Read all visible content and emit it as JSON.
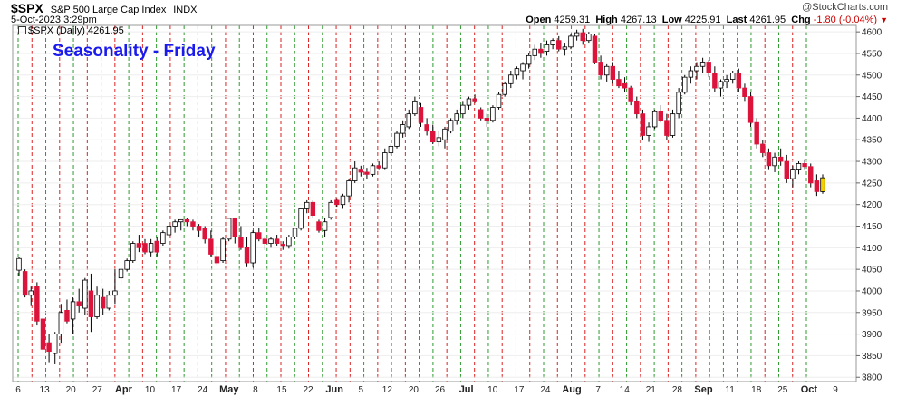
{
  "header": {
    "symbol": "$SPX",
    "description": "S&P 500 Large Cap Index",
    "exchange": "INDX",
    "brand": "@StockCharts.com",
    "datetime": "5-Oct-2023 3:29pm",
    "open_label": "Open",
    "open": "4259.31",
    "high_label": "High",
    "high": "4267.13",
    "low_label": "Low",
    "low": "4225.91",
    "last_label": "Last",
    "last": "4261.95",
    "chg_label": "Chg",
    "chg": "-1.80 (-0.04%)",
    "legend": "$SPX (Daily) 4261.95"
  },
  "annotation": "Seasonality - Friday",
  "colors": {
    "up_candle": "#ffffff",
    "down_candle": "#dc143c",
    "outline": "#000000",
    "green_line": "#2e9a2e",
    "red_line": "#dd2222",
    "annotation": "#1a1aee",
    "last_candle": "#f5d000"
  },
  "chart_data": {
    "type": "candlestick",
    "title": "Seasonality - Friday",
    "ylim": [
      3790,
      4615
    ],
    "yticks": [
      3800,
      3850,
      3900,
      3950,
      4000,
      4050,
      4100,
      4150,
      4200,
      4250,
      4300,
      4350,
      4400,
      4450,
      4500,
      4550,
      4600
    ],
    "xlabels": [
      {
        "label": "6",
        "month": false
      },
      {
        "label": "13",
        "month": false
      },
      {
        "label": "20",
        "month": false
      },
      {
        "label": "27",
        "month": false
      },
      {
        "label": "Apr",
        "month": true
      },
      {
        "label": "10",
        "month": false
      },
      {
        "label": "17",
        "month": false
      },
      {
        "label": "24",
        "month": false
      },
      {
        "label": "May",
        "month": true
      },
      {
        "label": "8",
        "month": false
      },
      {
        "label": "15",
        "month": false
      },
      {
        "label": "22",
        "month": false
      },
      {
        "label": "Jun",
        "month": true
      },
      {
        "label": "5",
        "month": false
      },
      {
        "label": "12",
        "month": false
      },
      {
        "label": "20",
        "month": false
      },
      {
        "label": "26",
        "month": false
      },
      {
        "label": "Jul",
        "month": true
      },
      {
        "label": "10",
        "month": false
      },
      {
        "label": "17",
        "month": false
      },
      {
        "label": "24",
        "month": false
      },
      {
        "label": "Aug",
        "month": true
      },
      {
        "label": "7",
        "month": false
      },
      {
        "label": "14",
        "month": false
      },
      {
        "label": "21",
        "month": false
      },
      {
        "label": "28",
        "month": false
      },
      {
        "label": "Sep",
        "month": true
      },
      {
        "label": "11",
        "month": false
      },
      {
        "label": "18",
        "month": false
      },
      {
        "label": "25",
        "month": false
      },
      {
        "label": "Oct",
        "month": true
      },
      {
        "label": "9",
        "month": false
      }
    ],
    "vertical_lines": [
      {
        "day": "Monday",
        "color": "green",
        "label": "6"
      },
      {
        "day": "Friday",
        "color": "red",
        "label": "10 Mar"
      },
      {
        "day": "Monday",
        "color": "green",
        "label": "13"
      },
      {
        "day": "Friday",
        "color": "red",
        "label": "17 Mar"
      },
      {
        "day": "Monday",
        "color": "green",
        "label": "20"
      },
      {
        "day": "Friday",
        "color": "red",
        "label": "24 Mar"
      },
      {
        "day": "Monday",
        "color": "green",
        "label": "27"
      },
      {
        "day": "Friday",
        "color": "red",
        "label": "31 Mar"
      },
      {
        "day": "Monday",
        "color": "green",
        "label": "3 Apr"
      },
      {
        "day": "Friday",
        "color": "red",
        "label": "7 Apr"
      },
      {
        "day": "Monday",
        "color": "green",
        "label": "10"
      },
      {
        "day": "Friday",
        "color": "red",
        "label": "14 Apr"
      },
      {
        "day": "Monday",
        "color": "green",
        "label": "17"
      },
      {
        "day": "Friday",
        "color": "red",
        "label": "21 Apr"
      },
      {
        "day": "Monday",
        "color": "green",
        "label": "24"
      },
      {
        "day": "Friday",
        "color": "red",
        "label": "28 Apr"
      },
      {
        "day": "Monday",
        "color": "green",
        "label": "1 May"
      },
      {
        "day": "Friday",
        "color": "red",
        "label": "5 May"
      },
      {
        "day": "Monday",
        "color": "green",
        "label": "8"
      },
      {
        "day": "Friday",
        "color": "red",
        "label": "12 May"
      },
      {
        "day": "Monday",
        "color": "green",
        "label": "15"
      },
      {
        "day": "Friday",
        "color": "red",
        "label": "19 May"
      },
      {
        "day": "Monday",
        "color": "green",
        "label": "22"
      },
      {
        "day": "Friday",
        "color": "red",
        "label": "26 May"
      },
      {
        "day": "Friday",
        "color": "red",
        "label": "2 Jun"
      },
      {
        "day": "Monday",
        "color": "green",
        "label": "5"
      },
      {
        "day": "Friday",
        "color": "red",
        "label": "9 Jun"
      },
      {
        "day": "Monday",
        "color": "green",
        "label": "12"
      },
      {
        "day": "Friday",
        "color": "red",
        "label": "16 Jun"
      },
      {
        "day": "Friday",
        "color": "red",
        "label": "23 Jun"
      },
      {
        "day": "Monday",
        "color": "green",
        "label": "26"
      },
      {
        "day": "Friday",
        "color": "red",
        "label": "30 Jun"
      },
      {
        "day": "Monday",
        "color": "green",
        "label": "3 Jul"
      },
      {
        "day": "Friday",
        "color": "red",
        "label": "7 Jul"
      },
      {
        "day": "Monday",
        "color": "green",
        "label": "10"
      },
      {
        "day": "Friday",
        "color": "red",
        "label": "14 Jul"
      },
      {
        "day": "Monday",
        "color": "green",
        "label": "17"
      },
      {
        "day": "Friday",
        "color": "red",
        "label": "21 Jul"
      },
      {
        "day": "Monday",
        "color": "green",
        "label": "24"
      },
      {
        "day": "Friday",
        "color": "red",
        "label": "28 Jul"
      },
      {
        "day": "Monday",
        "color": "green",
        "label": "31 Jul"
      },
      {
        "day": "Friday",
        "color": "red",
        "label": "4 Aug"
      },
      {
        "day": "Monday",
        "color": "green",
        "label": "7"
      },
      {
        "day": "Friday",
        "color": "red",
        "label": "11 Aug"
      },
      {
        "day": "Monday",
        "color": "green",
        "label": "14"
      },
      {
        "day": "Friday",
        "color": "red",
        "label": "18 Aug"
      },
      {
        "day": "Monday",
        "color": "green",
        "label": "21"
      },
      {
        "day": "Friday",
        "color": "red",
        "label": "25 Aug"
      },
      {
        "day": "Monday",
        "color": "green",
        "label": "28"
      },
      {
        "day": "Friday",
        "color": "red",
        "label": "1 Sep"
      },
      {
        "day": "Friday",
        "color": "red",
        "label": "8 Sep"
      },
      {
        "day": "Monday",
        "color": "green",
        "label": "11"
      },
      {
        "day": "Friday",
        "color": "red",
        "label": "15 Sep"
      },
      {
        "day": "Monday",
        "color": "green",
        "label": "18"
      },
      {
        "day": "Friday",
        "color": "red",
        "label": "22 Sep"
      },
      {
        "day": "Monday",
        "color": "green",
        "label": "25"
      },
      {
        "day": "Friday",
        "color": "red",
        "label": "29 Sep"
      },
      {
        "day": "Monday",
        "color": "green",
        "label": "2 Oct"
      }
    ],
    "ohlc": [
      [
        4048,
        4078,
        4035,
        4075
      ],
      [
        4045,
        4050,
        3985,
        3990
      ],
      [
        3990,
        4010,
        3965,
        4000
      ],
      [
        4010,
        4020,
        3920,
        3930
      ],
      [
        3935,
        3945,
        3855,
        3865
      ],
      [
        3880,
        3900,
        3835,
        3860
      ],
      [
        3855,
        3905,
        3830,
        3900
      ],
      [
        3900,
        3970,
        3880,
        3950
      ],
      [
        3955,
        3980,
        3925,
        3930
      ],
      [
        3935,
        3985,
        3900,
        3975
      ],
      [
        3975,
        4005,
        3950,
        3965
      ],
      [
        3960,
        4030,
        3945,
        4025
      ],
      [
        4000,
        4040,
        3905,
        3940
      ],
      [
        3940,
        4010,
        3935,
        3990
      ],
      [
        3985,
        4005,
        3945,
        3960
      ],
      [
        3960,
        4000,
        3955,
        3990
      ],
      [
        3990,
        4050,
        3970,
        4000
      ],
      [
        4030,
        4055,
        4015,
        4050
      ],
      [
        4050,
        4075,
        4045,
        4070
      ],
      [
        4070,
        4115,
        4065,
        4110
      ],
      [
        4110,
        4130,
        4090,
        4100
      ],
      [
        4110,
        4120,
        4085,
        4090
      ],
      [
        4090,
        4120,
        4080,
        4110
      ],
      [
        4115,
        4125,
        4080,
        4090
      ],
      [
        4110,
        4140,
        4105,
        4135
      ],
      [
        4130,
        4155,
        4120,
        4150
      ],
      [
        4150,
        4165,
        4135,
        4160
      ],
      [
        4160,
        4165,
        4140,
        4165
      ],
      [
        4165,
        4170,
        4150,
        4160
      ],
      [
        4160,
        4165,
        4140,
        4150
      ],
      [
        4150,
        4155,
        4125,
        4140
      ],
      [
        4145,
        4150,
        4110,
        4120
      ],
      [
        4120,
        4140,
        4080,
        4085
      ],
      [
        4080,
        4105,
        4060,
        4065
      ],
      [
        4070,
        4125,
        4065,
        4120
      ],
      [
        4120,
        4170,
        4115,
        4168
      ],
      [
        4168,
        4170,
        4110,
        4125
      ],
      [
        4125,
        4150,
        4095,
        4100
      ],
      [
        4100,
        4125,
        4055,
        4065
      ],
      [
        4065,
        4140,
        4055,
        4135
      ],
      [
        4135,
        4145,
        4115,
        4120
      ],
      [
        4120,
        4125,
        4095,
        4110
      ],
      [
        4110,
        4125,
        4100,
        4120
      ],
      [
        4120,
        4130,
        4105,
        4110
      ],
      [
        4108,
        4115,
        4095,
        4105
      ],
      [
        4105,
        4130,
        4098,
        4125
      ],
      [
        4125,
        4145,
        4120,
        4145
      ],
      [
        4145,
        4190,
        4140,
        4190
      ],
      [
        4190,
        4210,
        4180,
        4205
      ],
      [
        4205,
        4210,
        4170,
        4175
      ],
      [
        4160,
        4165,
        4135,
        4140
      ],
      [
        4140,
        4170,
        4125,
        4160
      ],
      [
        4170,
        4210,
        4165,
        4205
      ],
      [
        4210,
        4215,
        4195,
        4200
      ],
      [
        4200,
        4225,
        4190,
        4220
      ],
      [
        4220,
        4260,
        4205,
        4255
      ],
      [
        4255,
        4300,
        4250,
        4285
      ],
      [
        4280,
        4290,
        4265,
        4275
      ],
      [
        4275,
        4285,
        4260,
        4270
      ],
      [
        4270,
        4295,
        4265,
        4290
      ],
      [
        4290,
        4300,
        4280,
        4285
      ],
      [
        4285,
        4330,
        4280,
        4320
      ],
      [
        4320,
        4340,
        4315,
        4335
      ],
      [
        4335,
        4370,
        4330,
        4365
      ],
      [
        4365,
        4395,
        4355,
        4385
      ],
      [
        4380,
        4420,
        4375,
        4410
      ],
      [
        4410,
        4450,
        4405,
        4440
      ],
      [
        4425,
        4435,
        4380,
        4390
      ],
      [
        4385,
        4400,
        4360,
        4370
      ],
      [
        4370,
        4385,
        4340,
        4345
      ],
      [
        4345,
        4370,
        4335,
        4355
      ],
      [
        4350,
        4380,
        4330,
        4375
      ],
      [
        4370,
        4400,
        4365,
        4395
      ],
      [
        4395,
        4420,
        4385,
        4410
      ],
      [
        4410,
        4440,
        4400,
        4430
      ],
      [
        4430,
        4450,
        4420,
        4445
      ],
      [
        4445,
        4455,
        4435,
        4440
      ],
      [
        4420,
        4425,
        4395,
        4400
      ],
      [
        4400,
        4410,
        4380,
        4395
      ],
      [
        4395,
        4430,
        4390,
        4425
      ],
      [
        4425,
        4460,
        4420,
        4455
      ],
      [
        4455,
        4485,
        4450,
        4480
      ],
      [
        4480,
        4510,
        4470,
        4500
      ],
      [
        4500,
        4520,
        4490,
        4515
      ],
      [
        4510,
        4530,
        4490,
        4525
      ],
      [
        4525,
        4550,
        4515,
        4545
      ],
      [
        4545,
        4570,
        4535,
        4560
      ],
      [
        4560,
        4575,
        4540,
        4550
      ],
      [
        4555,
        4580,
        4545,
        4570
      ],
      [
        4570,
        4585,
        4560,
        4580
      ],
      [
        4580,
        4590,
        4555,
        4560
      ],
      [
        4560,
        4575,
        4545,
        4565
      ],
      [
        4565,
        4595,
        4560,
        4590
      ],
      [
        4590,
        4605,
        4580,
        4598
      ],
      [
        4598,
        4607,
        4570,
        4580
      ],
      [
        4580,
        4600,
        4575,
        4595
      ],
      [
        4590,
        4595,
        4525,
        4530
      ],
      [
        4530,
        4545,
        4490,
        4500
      ],
      [
        4500,
        4525,
        4485,
        4520
      ],
      [
        4520,
        4530,
        4480,
        4490
      ],
      [
        4490,
        4510,
        4470,
        4475
      ],
      [
        4480,
        4495,
        4460,
        4470
      ],
      [
        4470,
        4475,
        4430,
        4440
      ],
      [
        4440,
        4450,
        4400,
        4410
      ],
      [
        4410,
        4420,
        4350,
        4360
      ],
      [
        4360,
        4390,
        4345,
        4380
      ],
      [
        4380,
        4420,
        4375,
        4415
      ],
      [
        4415,
        4430,
        4390,
        4395
      ],
      [
        4395,
        4410,
        4350,
        4360
      ],
      [
        4360,
        4420,
        4355,
        4410
      ],
      [
        4410,
        4470,
        4400,
        4460
      ],
      [
        4460,
        4500,
        4455,
        4495
      ],
      [
        4495,
        4520,
        4480,
        4510
      ],
      [
        4510,
        4530,
        4490,
        4520
      ],
      [
        4520,
        4540,
        4505,
        4530
      ],
      [
        4530,
        4535,
        4495,
        4505
      ],
      [
        4505,
        4520,
        4460,
        4470
      ],
      [
        4470,
        4490,
        4450,
        4485
      ],
      [
        4485,
        4500,
        4470,
        4490
      ],
      [
        4490,
        4510,
        4480,
        4505
      ],
      [
        4505,
        4515,
        4460,
        4470
      ],
      [
        4470,
        4480,
        4440,
        4450
      ],
      [
        4450,
        4460,
        4380,
        4390
      ],
      [
        4390,
        4400,
        4330,
        4340
      ],
      [
        4340,
        4350,
        4310,
        4320
      ],
      [
        4320,
        4330,
        4280,
        4290
      ],
      [
        4290,
        4320,
        4275,
        4310
      ],
      [
        4310,
        4330,
        4290,
        4300
      ],
      [
        4300,
        4315,
        4250,
        4260
      ],
      [
        4260,
        4290,
        4240,
        4280
      ],
      [
        4280,
        4300,
        4270,
        4295
      ],
      [
        4295,
        4305,
        4280,
        4288
      ],
      [
        4288,
        4295,
        4240,
        4250
      ],
      [
        4255,
        4270,
        4220,
        4230
      ],
      [
        4230,
        4270,
        4225,
        4262
      ]
    ]
  }
}
